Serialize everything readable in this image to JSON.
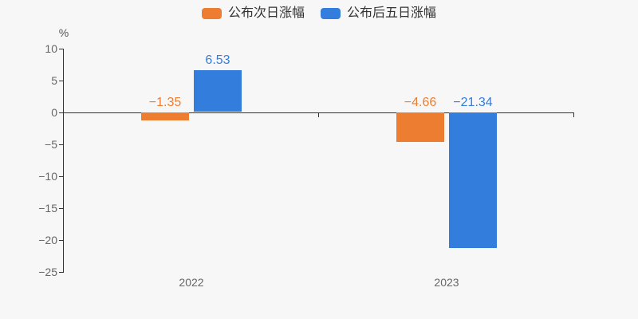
{
  "chart_data": {
    "type": "bar",
    "title": "",
    "categories": [
      "2022",
      "2023"
    ],
    "series": [
      {
        "name": "公布次日涨幅",
        "color": "#ed7d31",
        "values": [
          -1.35,
          -4.66
        ],
        "labels": [
          "−1.35",
          "−4.66"
        ]
      },
      {
        "name": "公布后五日涨幅",
        "color": "#337edd",
        "values": [
          6.53,
          -21.34
        ],
        "labels": [
          "6.53",
          "−21.34"
        ]
      }
    ],
    "xlabel": "",
    "ylabel": "%",
    "ylim": [
      -25,
      10
    ],
    "ytick_step": 5,
    "yticks": [
      10,
      5,
      0,
      -5,
      -10,
      -15,
      -20,
      -25
    ],
    "ytick_labels": [
      "10",
      "5",
      "0",
      "−5",
      "−10",
      "−15",
      "−20",
      "−25"
    ],
    "grid": false,
    "legend_position": "top",
    "axis_color": "#333333",
    "tick_label_color": "#666666",
    "background_color": "#f7f7f8"
  }
}
